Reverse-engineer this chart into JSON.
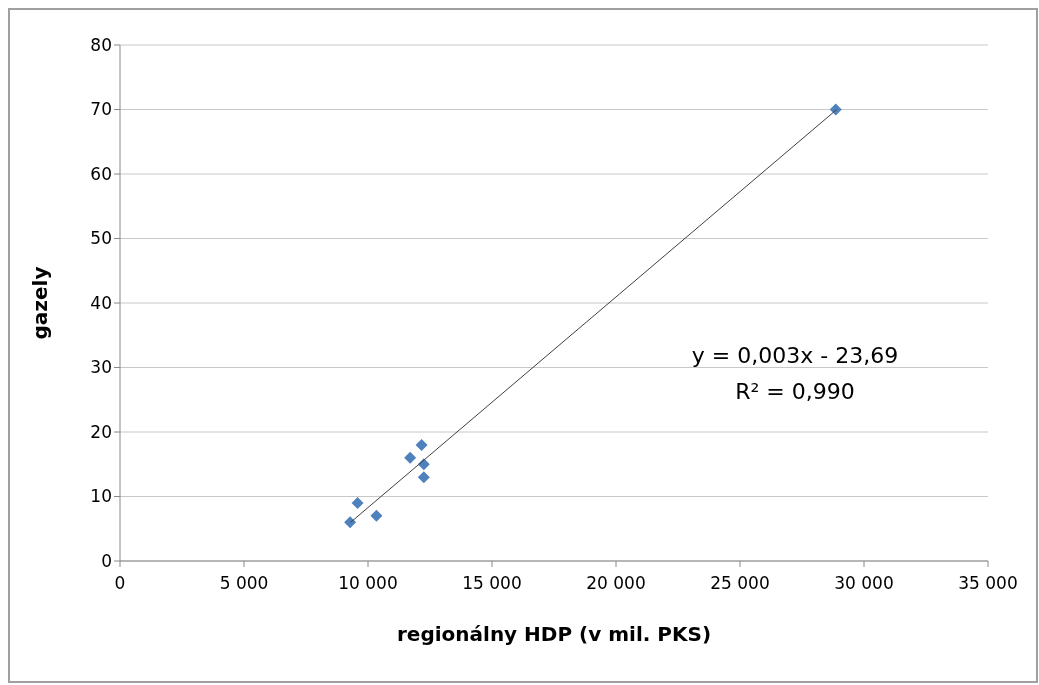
{
  "chart_data": {
    "type": "scatter",
    "xlabel": "regionálny HDP (v mil. PKS)",
    "ylabel": "gazely",
    "x": [
      9280,
      9580,
      10340,
      11700,
      12160,
      12250,
      12250,
      28860
    ],
    "series": [
      {
        "type": "scatter",
        "color": "#4f81bd",
        "marker": "diamond",
        "values": [
          6,
          9,
          7,
          16,
          18,
          15,
          13,
          70
        ]
      },
      {
        "type": "line",
        "color": "#404040",
        "marker": "none",
        "x": [
          9300,
          28900
        ],
        "values": [
          6,
          70
        ]
      }
    ],
    "xlim": [
      0,
      35000
    ],
    "xticks": [
      {
        "value": 0,
        "label": "0"
      },
      {
        "value": 5000,
        "label": "5 000"
      },
      {
        "value": 10000,
        "label": "10 000"
      },
      {
        "value": 15000,
        "label": "15 000"
      },
      {
        "value": 20000,
        "label": "20 000"
      },
      {
        "value": 25000,
        "label": "25 000"
      },
      {
        "value": 30000,
        "label": "30 000"
      },
      {
        "value": 35000,
        "label": "35 000"
      }
    ],
    "ylim": [
      0,
      80
    ],
    "yticks": [
      0,
      10,
      20,
      30,
      40,
      50,
      60,
      70,
      80
    ],
    "grid": "y",
    "legend": false,
    "annotations": [
      "y = 0,003x - 23,69",
      "R² = 0,990"
    ]
  }
}
